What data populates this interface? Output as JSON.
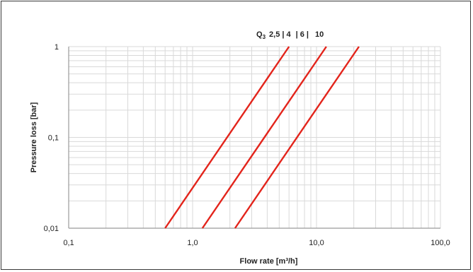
{
  "chart_data": {
    "type": "line",
    "title": "",
    "xlabel": "Flow rate [m³/h]",
    "ylabel": "Pressure loss [bar]",
    "x_scale": "log",
    "y_scale": "log",
    "xlim": [
      0.1,
      100
    ],
    "ylim": [
      0.01,
      1
    ],
    "x_ticks": [
      0.1,
      1,
      10,
      100
    ],
    "x_tick_labels": [
      "0,1",
      "1,0",
      "10,0",
      "100,0"
    ],
    "y_ticks": [
      0.01,
      0.1,
      1
    ],
    "y_tick_labels": [
      "0,01",
      "0,1",
      "1"
    ],
    "grid": true,
    "legend_position": "top-right",
    "legend": {
      "prefix": "Q",
      "subscript": "3",
      "items": [
        "2,5 | 4",
        "| 6 |",
        "10"
      ]
    },
    "series": [
      {
        "x": [
          0.6,
          6.0
        ],
        "y": [
          0.01,
          1
        ]
      },
      {
        "x": [
          1.2,
          12.0
        ],
        "y": [
          0.01,
          1
        ]
      },
      {
        "x": [
          2.2,
          22.0
        ],
        "y": [
          0.01,
          1
        ]
      }
    ],
    "line_color": "#e3241b",
    "grid_color": "#d9d9d9",
    "axis_color": "#9a9a9a"
  }
}
